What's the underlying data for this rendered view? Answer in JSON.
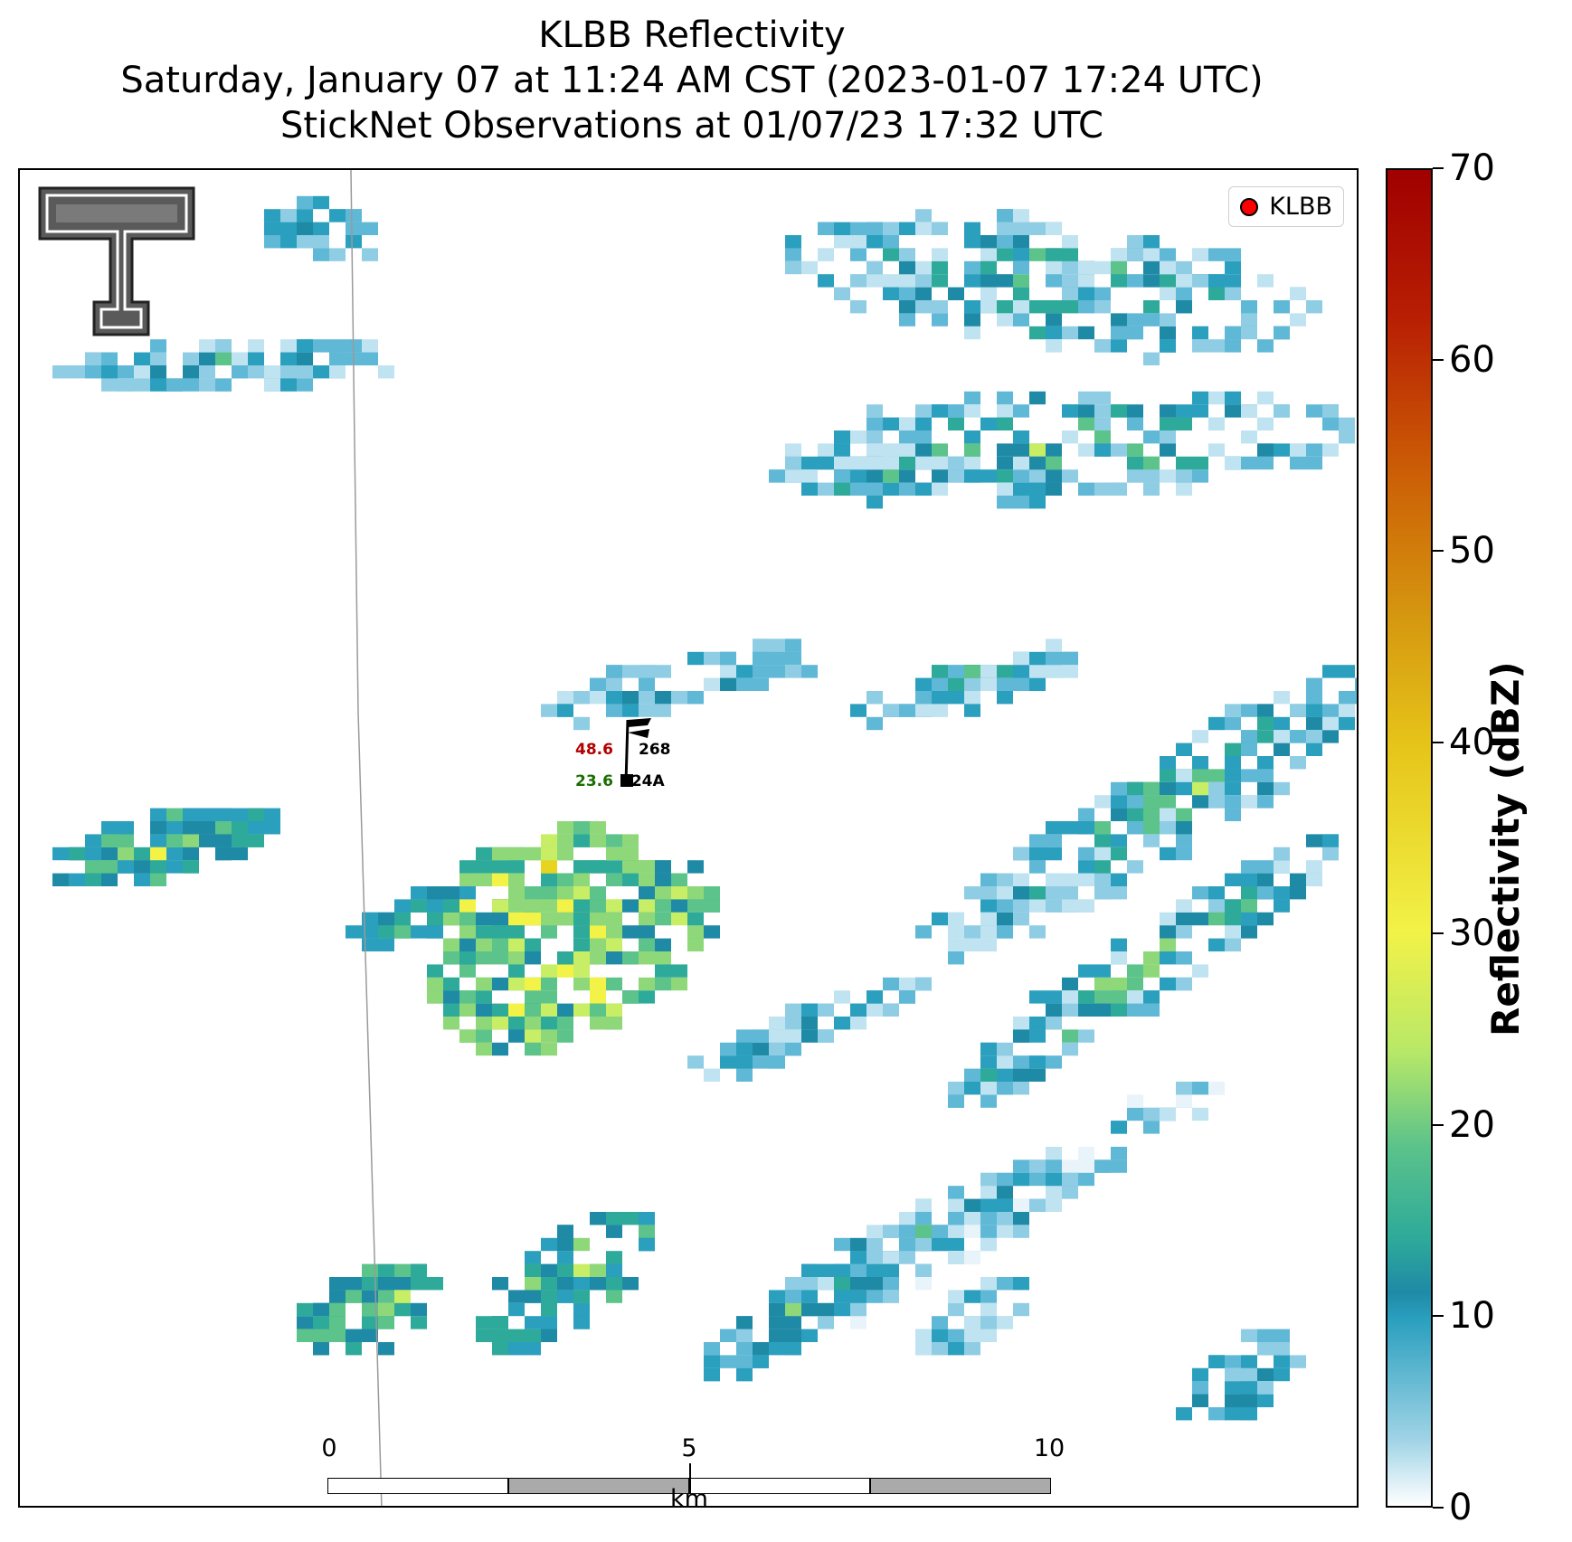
{
  "titles": {
    "line1": "KLBB Reflectivity",
    "line2": "Saturday, January 07 at 11:24 AM CST (2023-01-07 17:24 UTC)",
    "line3": "StickNet Observations at 01/07/23 17:32 UTC"
  },
  "legend": {
    "label": "KLBB",
    "marker_color": "#ff0000"
  },
  "station": {
    "temperature": "48.6",
    "temperature_color": "#b30000",
    "dewpoint": "23.6",
    "dewpoint_color": "#1a6e00",
    "pressure": "268",
    "id": "224A"
  },
  "colorbar": {
    "label": "Reflectivity (dBZ)",
    "ticks": [
      "0",
      "10",
      "20",
      "30",
      "40",
      "50",
      "60",
      "70"
    ],
    "min": 0,
    "max": 70
  },
  "scalebar": {
    "ticks": [
      "0",
      "5",
      "10"
    ],
    "unit": "km"
  },
  "logo": {
    "name": "Texas Tech Double T"
  }
}
